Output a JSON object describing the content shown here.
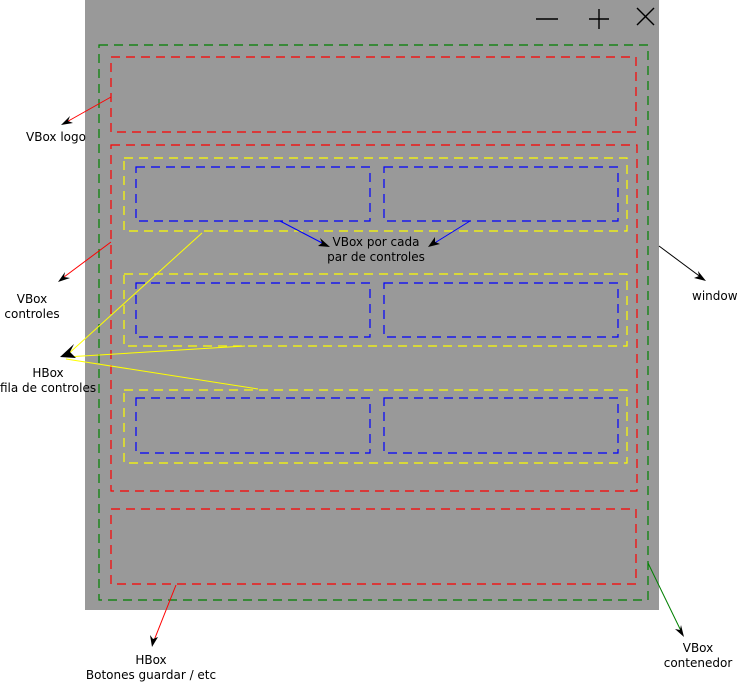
{
  "window": {
    "controls": [
      {
        "name": "minimize-icon"
      },
      {
        "name": "maximize-icon"
      },
      {
        "name": "close-icon"
      }
    ]
  },
  "labels": {
    "vbox_logo": "VBox logo",
    "vbox_controles": [
      "VBox",
      "controles"
    ],
    "hbox_fila": [
      "HBox",
      "fila de controles"
    ],
    "vbox_par": [
      "VBox por cada",
      "par de controles"
    ],
    "window": "window",
    "hbox_botones": [
      "HBox",
      "Botones guardar / etc"
    ],
    "vbox_contenedor": [
      "VBox",
      "contenedor"
    ]
  },
  "colors": {
    "window_bg": "#999999",
    "vbox_contenedor": "#008000",
    "vbox_logo_controles_botones": "#ff0000",
    "hbox_fila": "#ffff00",
    "vbox_par": "#0000ff",
    "arrow_window": "#000000"
  }
}
